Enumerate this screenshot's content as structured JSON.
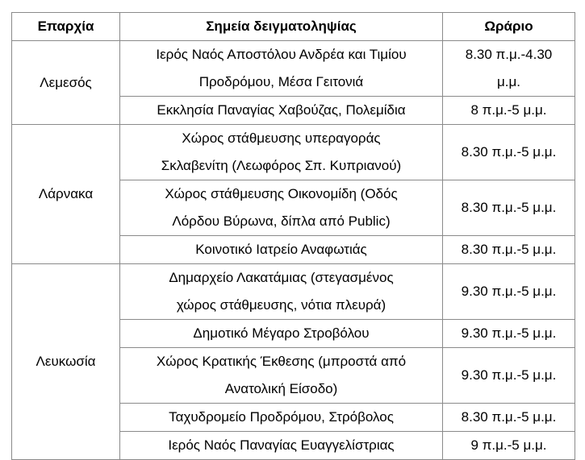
{
  "table": {
    "headers": [
      "Επαρχία",
      "Σημεία δειγματοληψίας",
      "Ωράριο"
    ],
    "groups": [
      {
        "district": "Λεμεσός",
        "rows": [
          {
            "location": [
              "Ιερός Ναός Αποστόλου Ανδρέα και Τιμίου",
              "Προδρόμου, Μέσα Γειτονιά"
            ],
            "hours": [
              "8.30 π.μ.-4.30",
              "μ.μ."
            ]
          },
          {
            "location": [
              "Εκκλησία Παναγίας Χαβούζας, Πολεμίδια"
            ],
            "hours": [
              "8 π.μ.-5 μ.μ."
            ]
          }
        ]
      },
      {
        "district": "Λάρνακα",
        "rows": [
          {
            "location": [
              "Χώρος στάθμευσης υπεραγοράς",
              "Σκλαβενίτη (Λεωφόρος Σπ. Κυπριανού)"
            ],
            "hours": [
              "8.30 π.μ.-5 μ.μ."
            ]
          },
          {
            "location": [
              "Χώρος στάθμευσης Οικονομίδη (Οδός",
              "Λόρδου Βύρωνα, δίπλα από Public)"
            ],
            "hours": [
              "8.30 π.μ.-5 μ.μ."
            ]
          },
          {
            "location": [
              "Κοινοτικό Ιατρείο Αναφωτιάς"
            ],
            "hours": [
              "8.30 π.μ.-5 μ.μ."
            ]
          }
        ]
      },
      {
        "district": "Λευκωσία",
        "rows": [
          {
            "location": [
              "Δημαρχείο Λακατάμιας (στεγασμένος",
              "χώρος στάθμευσης, νότια πλευρά)"
            ],
            "hours": [
              "9.30 π.μ.-5 μ.μ."
            ]
          },
          {
            "location": [
              "Δημοτικό Μέγαρο Στροβόλου"
            ],
            "hours": [
              "9.30 π.μ.-5 μ.μ."
            ]
          },
          {
            "location": [
              "Χώρος Κρατικής Έκθεσης (μπροστά από",
              "Ανατολική Είσοδο)"
            ],
            "hours": [
              "9.30 π.μ.-5 μ.μ."
            ]
          },
          {
            "location": [
              "Ταχυδρομείο Προδρόμου, Στρόβολος"
            ],
            "hours": [
              "8.30 π.μ.-5 μ.μ."
            ]
          },
          {
            "location": [
              "Ιερός Ναός Παναγίας Ευαγγελίστριας"
            ],
            "hours": [
              "9 π.μ.-5 μ.μ."
            ]
          }
        ]
      }
    ]
  }
}
